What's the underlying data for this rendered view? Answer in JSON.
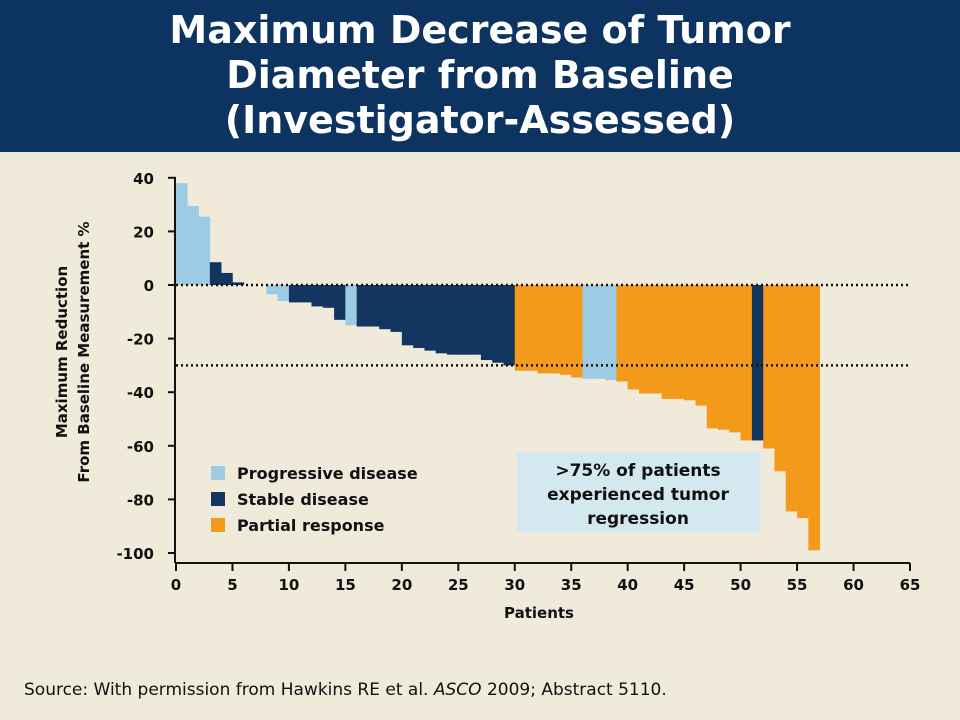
{
  "header": {
    "title_lines": [
      "Maximum Decrease of Tumor",
      "Diameter from Baseline",
      "(Investigator-Assessed)"
    ]
  },
  "footer": {
    "source_prefix": "Source: With permission from Hawkins RE et al. ",
    "source_italic": "ASCO",
    "source_suffix": " 2009; Abstract 5110."
  },
  "colors": {
    "header_bg": "#0d3360",
    "page_bg": "#f0eadb",
    "progressive": "#9ccbe3",
    "stable": "#12365f",
    "partial": "#f39a1a",
    "callout_bg": "#d3e8ef"
  },
  "chart_data": {
    "type": "bar",
    "xlabel": "Patients",
    "ylabel_lines": [
      "Maximum Reduction",
      "From Baseline Measurement %"
    ],
    "xlim": [
      0,
      65
    ],
    "ylim": [
      -100,
      40
    ],
    "xticks": [
      0,
      5,
      10,
      15,
      20,
      25,
      30,
      35,
      40,
      45,
      50,
      55,
      60,
      65
    ],
    "yticks": [
      40,
      20,
      0,
      -20,
      -40,
      -60,
      -80,
      -100
    ],
    "reference_lines": [
      0,
      -30
    ],
    "legend": [
      {
        "key": "progressive",
        "label": "Progressive disease"
      },
      {
        "key": "stable",
        "label": "Stable disease"
      },
      {
        "key": "partial",
        "label": "Partial response"
      }
    ],
    "annotation": [
      ">75% of patients",
      "experienced tumor",
      "regression"
    ],
    "bars": [
      {
        "value": 38,
        "category": "progressive"
      },
      {
        "value": 29.5,
        "category": "progressive"
      },
      {
        "value": 25.5,
        "category": "progressive"
      },
      {
        "value": 8.5,
        "category": "stable"
      },
      {
        "value": 4.5,
        "category": "stable"
      },
      {
        "value": 1,
        "category": "stable"
      },
      {
        "value": 0,
        "category": "stable"
      },
      {
        "value": 0,
        "category": "stable"
      },
      {
        "value": -3.5,
        "category": "progressive"
      },
      {
        "value": -6,
        "category": "progressive"
      },
      {
        "value": -6.5,
        "category": "stable"
      },
      {
        "value": -6.5,
        "category": "stable"
      },
      {
        "value": -8,
        "category": "stable"
      },
      {
        "value": -8.5,
        "category": "stable"
      },
      {
        "value": -13,
        "category": "stable"
      },
      {
        "value": -15,
        "category": "progressive"
      },
      {
        "value": -15.5,
        "category": "stable"
      },
      {
        "value": -15.5,
        "category": "stable"
      },
      {
        "value": -16.5,
        "category": "stable"
      },
      {
        "value": -17.5,
        "category": "stable"
      },
      {
        "value": -22.5,
        "category": "stable"
      },
      {
        "value": -23.5,
        "category": "stable"
      },
      {
        "value": -24.5,
        "category": "stable"
      },
      {
        "value": -25.5,
        "category": "stable"
      },
      {
        "value": -26,
        "category": "stable"
      },
      {
        "value": -26,
        "category": "stable"
      },
      {
        "value": -26,
        "category": "stable"
      },
      {
        "value": -28,
        "category": "stable"
      },
      {
        "value": -29,
        "category": "stable"
      },
      {
        "value": -30,
        "category": "stable"
      },
      {
        "value": -32,
        "category": "partial"
      },
      {
        "value": -32,
        "category": "partial"
      },
      {
        "value": -33,
        "category": "partial"
      },
      {
        "value": -33,
        "category": "partial"
      },
      {
        "value": -33.5,
        "category": "partial"
      },
      {
        "value": -34.5,
        "category": "partial"
      },
      {
        "value": -35,
        "category": "progressive"
      },
      {
        "value": -35,
        "category": "progressive"
      },
      {
        "value": -35.5,
        "category": "progressive"
      },
      {
        "value": -36,
        "category": "partial"
      },
      {
        "value": -39,
        "category": "partial"
      },
      {
        "value": -40.5,
        "category": "partial"
      },
      {
        "value": -40.5,
        "category": "partial"
      },
      {
        "value": -42.5,
        "category": "partial"
      },
      {
        "value": -42.5,
        "category": "partial"
      },
      {
        "value": -43,
        "category": "partial"
      },
      {
        "value": -45,
        "category": "partial"
      },
      {
        "value": -53.5,
        "category": "partial"
      },
      {
        "value": -54,
        "category": "partial"
      },
      {
        "value": -55,
        "category": "partial"
      },
      {
        "value": -58,
        "category": "partial"
      },
      {
        "value": -58,
        "category": "stable"
      },
      {
        "value": -61,
        "category": "partial"
      },
      {
        "value": -69.5,
        "category": "partial"
      },
      {
        "value": -84.5,
        "category": "partial"
      },
      {
        "value": -87,
        "category": "partial"
      },
      {
        "value": -99,
        "category": "partial"
      }
    ]
  }
}
